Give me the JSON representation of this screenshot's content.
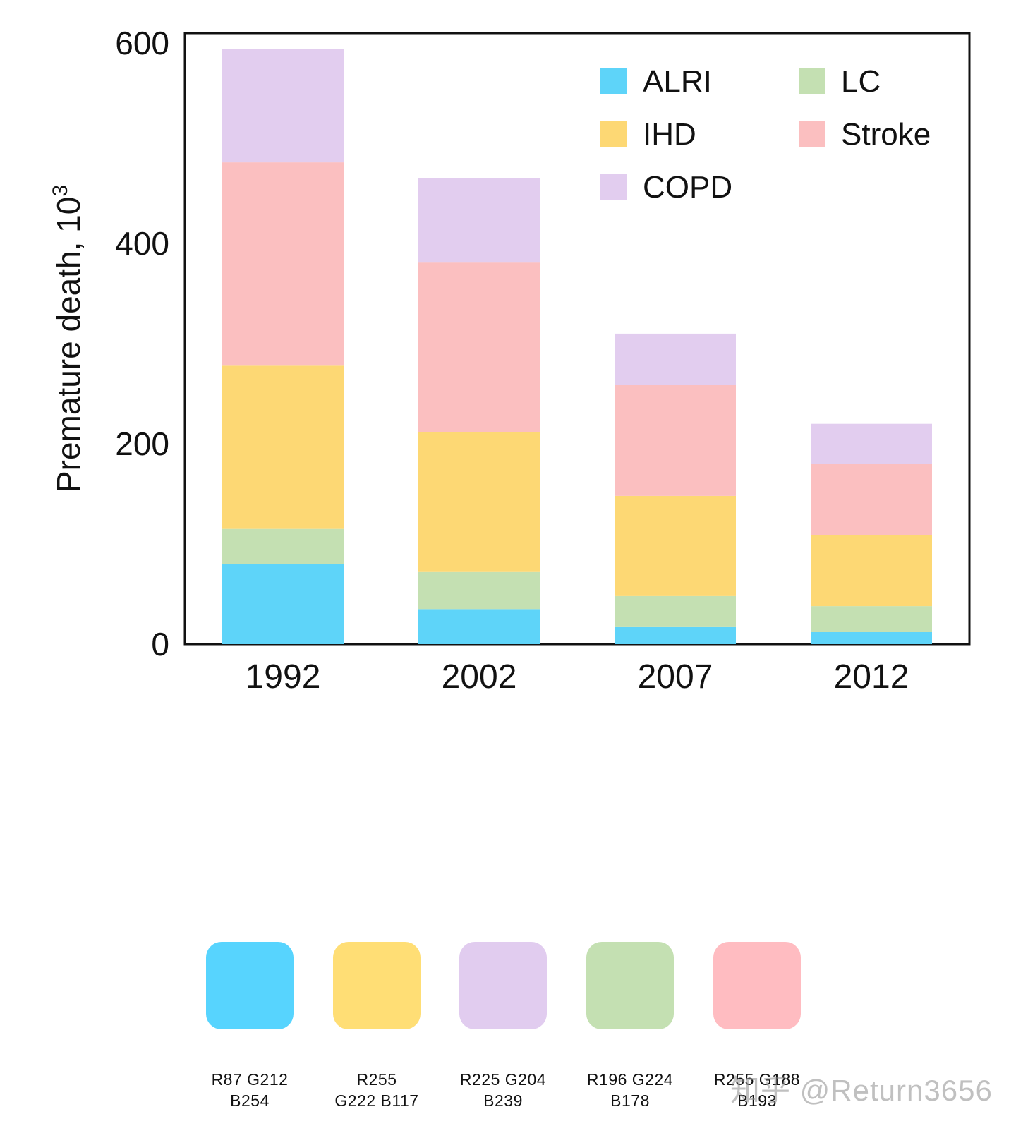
{
  "chart_data": {
    "type": "bar",
    "stacked": true,
    "categories": [
      "1992",
      "2002",
      "2007",
      "2012"
    ],
    "series": [
      {
        "name": "ALRI",
        "color": "#5ED4F9",
        "values": [
          80,
          35,
          17,
          12
        ]
      },
      {
        "name": "LC",
        "color": "#C4E0B2",
        "values": [
          35,
          37,
          31,
          26
        ]
      },
      {
        "name": "IHD",
        "color": "#FDD874",
        "values": [
          163,
          140,
          100,
          71
        ]
      },
      {
        "name": "Stroke",
        "color": "#FBBFC0",
        "values": [
          203,
          169,
          111,
          71
        ]
      },
      {
        "name": "COPD",
        "color": "#E2CDEF",
        "values": [
          113,
          84,
          51,
          40
        ]
      }
    ],
    "xlabel": "",
    "ylabel": "Premature death, 10",
    "ylabel_superscript": "3",
    "ylim": [
      0,
      610
    ],
    "yticks": [
      "0",
      "200",
      "400",
      "600"
    ],
    "ytick_values": [
      0,
      200,
      400,
      600
    ],
    "grid": false,
    "legend": {
      "placement": "top-right",
      "order": [
        "ALRI",
        "LC",
        "IHD",
        "Stroke",
        "COPD"
      ]
    }
  },
  "swatches": [
    {
      "label": "R87 G212\nB254",
      "color": "#57D4FE"
    },
    {
      "label": "R255\nG222 B117",
      "color": "#FFDE75"
    },
    {
      "label": "R225 G204\nB239",
      "color": "#E1CCEF"
    },
    {
      "label": "R196 G224\nB178",
      "color": "#C4E0B2"
    },
    {
      "label": "R255 G188\nB193",
      "color": "#FFBCC1"
    }
  ],
  "watermark": "知乎 @Return3656"
}
